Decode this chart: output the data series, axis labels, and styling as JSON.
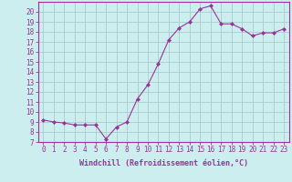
{
  "x": [
    0,
    1,
    2,
    3,
    4,
    5,
    6,
    7,
    8,
    9,
    10,
    11,
    12,
    13,
    14,
    15,
    16,
    17,
    18,
    19,
    20,
    21,
    22,
    23
  ],
  "y": [
    9.2,
    9.0,
    8.9,
    8.7,
    8.7,
    8.7,
    7.3,
    8.5,
    9.0,
    11.3,
    12.7,
    14.8,
    17.2,
    18.4,
    19.0,
    20.3,
    20.6,
    18.8,
    18.8,
    18.3,
    17.6,
    17.9,
    17.9,
    18.3
  ],
  "line_color": "#993399",
  "marker": "D",
  "marker_size": 2.0,
  "bg_color": "#cceeee",
  "grid_color": "#aacccc",
  "xlabel": "Windchill (Refroidissement éolien,°C)",
  "ylim": [
    7,
    21
  ],
  "xlim": [
    -0.5,
    23.5
  ],
  "yticks": [
    7,
    8,
    9,
    10,
    11,
    12,
    13,
    14,
    15,
    16,
    17,
    18,
    19,
    20
  ],
  "xticks": [
    0,
    1,
    2,
    3,
    4,
    5,
    6,
    7,
    8,
    9,
    10,
    11,
    12,
    13,
    14,
    15,
    16,
    17,
    18,
    19,
    20,
    21,
    22,
    23
  ],
  "tick_label_color": "#993399",
  "xlabel_color": "#993399",
  "spine_color": "#993399",
  "tick_fontsize": 5.5,
  "xlabel_fontsize": 6.0
}
